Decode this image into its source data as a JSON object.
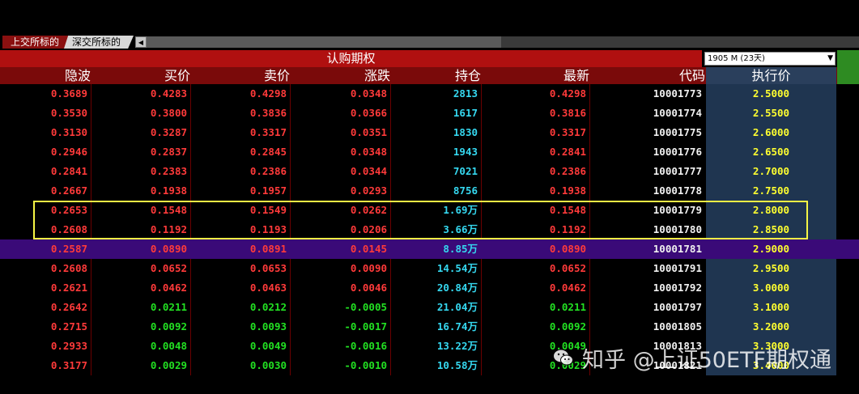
{
  "tabs": [
    {
      "label": "上交所标的"
    },
    {
      "label": "深交所标的"
    }
  ],
  "title": "认购期权",
  "expiry_select": {
    "value": "1905 M (23天)"
  },
  "columns": [
    "隐波",
    "买价",
    "卖价",
    "涨跌",
    "持仓",
    "最新",
    "代码",
    "执行价"
  ],
  "rows": [
    {
      "iv": "0.3689",
      "bid": "0.4283",
      "ask": "0.4298",
      "chg": "0.0348",
      "oi": "2813",
      "last": "0.4298",
      "code": "10001773",
      "strike": "2.5000"
    },
    {
      "iv": "0.3530",
      "bid": "0.3800",
      "ask": "0.3836",
      "chg": "0.0366",
      "oi": "1617",
      "last": "0.3816",
      "code": "10001774",
      "strike": "2.5500"
    },
    {
      "iv": "0.3130",
      "bid": "0.3287",
      "ask": "0.3317",
      "chg": "0.0351",
      "oi": "1830",
      "last": "0.3317",
      "code": "10001775",
      "strike": "2.6000"
    },
    {
      "iv": "0.2946",
      "bid": "0.2837",
      "ask": "0.2845",
      "chg": "0.0348",
      "oi": "1943",
      "last": "0.2841",
      "code": "10001776",
      "strike": "2.6500"
    },
    {
      "iv": "0.2841",
      "bid": "0.2383",
      "ask": "0.2386",
      "chg": "0.0344",
      "oi": "7021",
      "last": "0.2386",
      "code": "10001777",
      "strike": "2.7000"
    },
    {
      "iv": "0.2667",
      "bid": "0.1938",
      "ask": "0.1957",
      "chg": "0.0293",
      "oi": "8756",
      "last": "0.1938",
      "code": "10001778",
      "strike": "2.7500"
    },
    {
      "iv": "0.2653",
      "bid": "0.1548",
      "ask": "0.1549",
      "chg": "0.0262",
      "oi": "1.69万",
      "last": "0.1548",
      "code": "10001779",
      "strike": "2.8000"
    },
    {
      "iv": "0.2608",
      "bid": "0.1192",
      "ask": "0.1193",
      "chg": "0.0206",
      "oi": "3.66万",
      "last": "0.1192",
      "code": "10001780",
      "strike": "2.8500"
    },
    {
      "iv": "0.2587",
      "bid": "0.0890",
      "ask": "0.0891",
      "chg": "0.0145",
      "oi": "8.85万",
      "last": "0.0890",
      "code": "10001781",
      "strike": "2.9000"
    },
    {
      "iv": "0.2608",
      "bid": "0.0652",
      "ask": "0.0653",
      "chg": "0.0090",
      "oi": "14.54万",
      "last": "0.0652",
      "code": "10001791",
      "strike": "2.9500"
    },
    {
      "iv": "0.2621",
      "bid": "0.0462",
      "ask": "0.0463",
      "chg": "0.0046",
      "oi": "20.84万",
      "last": "0.0462",
      "code": "10001792",
      "strike": "3.0000"
    },
    {
      "iv": "0.2642",
      "bid": "0.0211",
      "ask": "0.0212",
      "chg": "-0.0005",
      "oi": "21.04万",
      "last": "0.0211",
      "code": "10001797",
      "strike": "3.1000"
    },
    {
      "iv": "0.2715",
      "bid": "0.0092",
      "ask": "0.0093",
      "chg": "-0.0017",
      "oi": "16.74万",
      "last": "0.0092",
      "code": "10001805",
      "strike": "3.2000"
    },
    {
      "iv": "0.2933",
      "bid": "0.0048",
      "ask": "0.0049",
      "chg": "-0.0016",
      "oi": "13.22万",
      "last": "0.0049",
      "code": "10001813",
      "strike": "3.3000"
    },
    {
      "iv": "0.3177",
      "bid": "0.0029",
      "ask": "0.0030",
      "chg": "-0.0010",
      "oi": "10.58万",
      "last": "0.0029",
      "code": "10001821",
      "strike": "3.4000"
    }
  ],
  "watermark": "知乎 @上证50ETF期权通",
  "colors": {
    "up": "#ff3a3a",
    "down": "#22e022",
    "oi": "#35d8f0",
    "strike": "#ffff30",
    "header_bg": "#7a0a0a",
    "title_bg": "#b01010",
    "atm_row": "#3a0a78",
    "highlight_box": "#f5f545"
  }
}
